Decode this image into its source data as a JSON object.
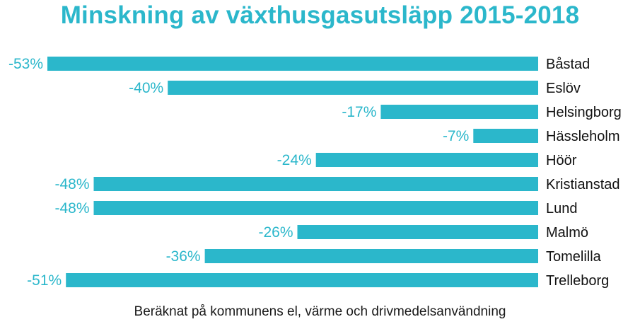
{
  "colors": {
    "bar": "#2bb7cb",
    "value_label": "#2bb7cb",
    "category_label": "#111111",
    "title": "#2bb7cb"
  },
  "chart_data": {
    "type": "bar",
    "orientation": "horizontal",
    "title": "Minskning av växthusgasutsläpp 2015-2018",
    "subtitle": "Beräknat på kommunens el, värme och drivmedelsanvändning",
    "categories": [
      "Båstad",
      "Eslöv",
      "Helsingborg",
      "Hässleholm",
      "Höör",
      "Kristianstad",
      "Lund",
      "Malmö",
      "Tomelilla",
      "Trelleborg"
    ],
    "values": [
      -53,
      -40,
      -17,
      -7,
      -24,
      -48,
      -48,
      -26,
      -36,
      -51
    ],
    "value_labels": [
      "-53%",
      "-40%",
      "-17%",
      "-7%",
      "-24%",
      "-48%",
      "-48%",
      "-26%",
      "-36%",
      "-51%"
    ],
    "xlim": [
      -53,
      0
    ],
    "grid": false,
    "legend": "none"
  }
}
